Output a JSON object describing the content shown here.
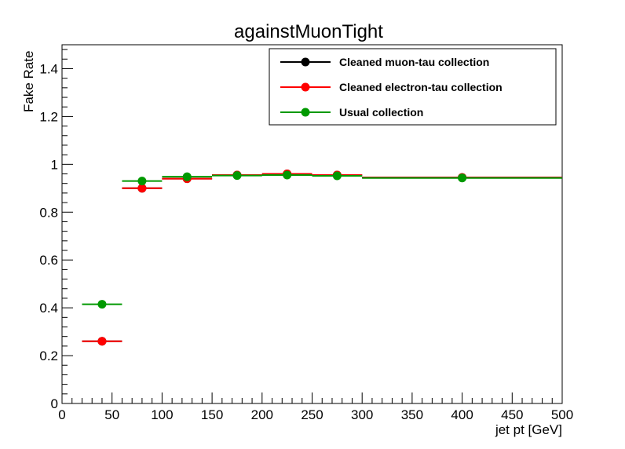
{
  "chart_data": {
    "type": "scatter",
    "title": "againstMuonTight",
    "xlabel": "jet pt [GeV]",
    "ylabel": "Fake Rate",
    "xlim": [
      0,
      500
    ],
    "ylim": [
      0,
      1.5
    ],
    "x_ticks": [
      "0",
      "50",
      "100",
      "150",
      "200",
      "250",
      "300",
      "350",
      "400",
      "450",
      "500"
    ],
    "y_ticks": [
      "0",
      "0.2",
      "0.4",
      "0.6",
      "0.8",
      "1",
      "1.2",
      "1.4"
    ],
    "grid": false,
    "legend_position": "top-right",
    "bin_edges": [
      20,
      60,
      100,
      150,
      200,
      250,
      300,
      500
    ],
    "series": [
      {
        "name": "Cleaned muon-tau collection",
        "color": "#000000",
        "x": [
          40,
          80,
          125,
          175,
          225,
          275,
          400
        ],
        "values": [
          0.26,
          0.9,
          0.94,
          0.955,
          0.96,
          0.955,
          0.945
        ]
      },
      {
        "name": "Cleaned electron-tau collection",
        "color": "#ff0000",
        "x": [
          40,
          80,
          125,
          175,
          225,
          275,
          400
        ],
        "values": [
          0.26,
          0.9,
          0.94,
          0.955,
          0.96,
          0.955,
          0.945
        ]
      },
      {
        "name": "Usual collection",
        "color": "#009900",
        "x": [
          40,
          80,
          125,
          175,
          225,
          275,
          400
        ],
        "values": [
          0.415,
          0.93,
          0.948,
          0.953,
          0.955,
          0.952,
          0.943
        ]
      }
    ]
  }
}
